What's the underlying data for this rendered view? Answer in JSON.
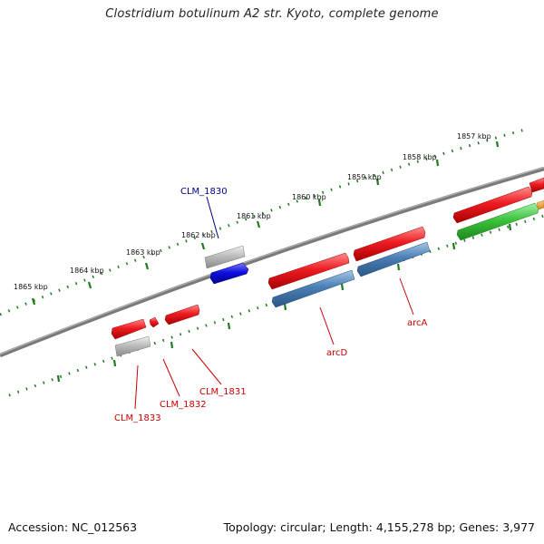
{
  "title": "Clostridium botulinum A2 str. Kyoto, complete genome",
  "footer": {
    "accession": "Accession: NC_012563",
    "summary": "Topology: circular; Length: 4,155,278 bp; Genes: 3,977"
  },
  "scale_labels": [
    "1857 kbp",
    "1858 kbp",
    "1859 kbp",
    "1860 kbp",
    "1861 kbp",
    "1862 kbp",
    "1863 kbp",
    "1864 kbp",
    "1865 kbp"
  ],
  "gene_labels": {
    "clm_1830": "CLM_1830",
    "arcd": "arcD",
    "arca": "arcA",
    "clm_1831": "CLM_1831",
    "clm_1832": "CLM_1832",
    "clm_1833": "CLM_1833"
  },
  "colors": {
    "backbone": "#7a7a7a",
    "ticks": "#1f7a1f",
    "forward_gene": "#e8141a",
    "reverse_gene": "#4a7fb5",
    "grey_gene": "#b5b5b5",
    "blue_gene": "#1010e0",
    "green_gene": "#3cc33c",
    "orange_gene": "#f0a030",
    "label_red": "#cc0000",
    "label_blue": "#00008b"
  }
}
